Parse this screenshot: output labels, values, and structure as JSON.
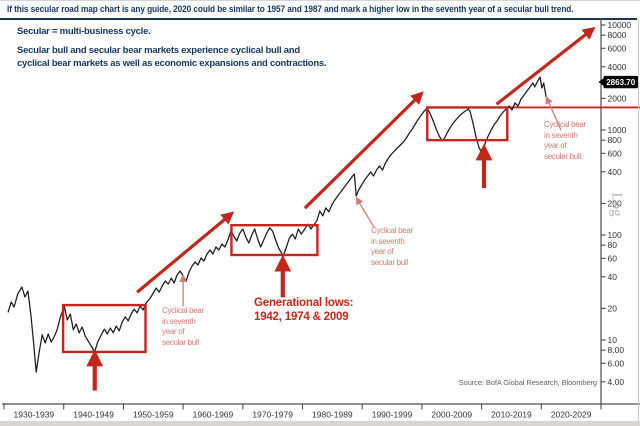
{
  "header": {
    "title": "If this secular road map chart is any guide, 2020 could be similar to 1957 and 1987 and mark a higher low in the seventh year of a secular bull trend.",
    "subtitle1": "Secular = multi-business cycle.",
    "subtitle2_line1": "Secular bull and secular bear markets experience cyclical bull and",
    "subtitle2_line2": "cyclical bear markets as well as economic expansions and contractions."
  },
  "colors": {
    "navy": "#17365d",
    "red": "#c3271c",
    "light_red": "#cf7b72",
    "line": "#1c1c1c",
    "axis": "#4d4d4d",
    "tick_text": "#333333",
    "marker_bg": "#000000",
    "marker_text": "#ffffff"
  },
  "chart_data": {
    "type": "line",
    "scale": "log",
    "title": "If this secular road map chart is any guide, 2020 could be similar to 1957 and 1987 and mark a higher low in the seventh year of a secular bull trend.",
    "source": "Source: BofA Global Research, Bloomberg",
    "x_axis": {
      "start_year": 1930,
      "end_year": 2030,
      "labels": [
        "1930-1939",
        "1940-1949",
        "1950-1959",
        "1960-1969",
        "1970-1979",
        "1980-1989",
        "1990-1999",
        "2000-2009",
        "2010-2019",
        "2020-2029"
      ]
    },
    "y_axis": {
      "axis_label": "Log",
      "ticks": [
        {
          "value": 10000,
          "label": "10000"
        },
        {
          "value": 8000,
          "label": "8000"
        },
        {
          "value": 6000,
          "label": "6000"
        },
        {
          "value": 4000,
          "label": "4000"
        },
        {
          "value": 2000,
          "label": "2000"
        },
        {
          "value": 1000,
          "label": "1000"
        },
        {
          "value": 800,
          "label": "800"
        },
        {
          "value": 600,
          "label": "600"
        },
        {
          "value": 400,
          "label": "400"
        },
        {
          "value": 200,
          "label": "200"
        },
        {
          "value": 100,
          "label": "100"
        },
        {
          "value": 80,
          "label": "80"
        },
        {
          "value": 60,
          "label": "60"
        },
        {
          "value": 40,
          "label": "40"
        },
        {
          "value": 20,
          "label": "20"
        },
        {
          "value": 10,
          "label": "10"
        },
        {
          "value": 8,
          "label": "8.00"
        },
        {
          "value": 6,
          "label": "6.00"
        },
        {
          "value": 4,
          "label": "4.00"
        }
      ]
    },
    "price_marker": {
      "label": "2863.70",
      "value": 2863.7
    },
    "series": [
      {
        "name": "stock-index",
        "points": [
          [
            1930.7,
            18.5
          ],
          [
            1931.2,
            23
          ],
          [
            1931.7,
            20.6
          ],
          [
            1932.3,
            27.4
          ],
          [
            1933,
            32
          ],
          [
            1933.5,
            25.7
          ],
          [
            1934,
            29.3
          ],
          [
            1934.5,
            17.3
          ],
          [
            1935,
            8.96
          ],
          [
            1935.4,
            4.95
          ],
          [
            1935.9,
            7.69
          ],
          [
            1936.4,
            11.2
          ],
          [
            1936.9,
            9.36
          ],
          [
            1937.4,
            11.4
          ],
          [
            1937.9,
            9.57
          ],
          [
            1938.4,
            10.7
          ],
          [
            1938.9,
            12.5
          ],
          [
            1939.4,
            16.2
          ],
          [
            1940.1,
            21.1
          ],
          [
            1940.6,
            15.5
          ],
          [
            1941.1,
            17.7
          ],
          [
            1941.6,
            12.5
          ],
          [
            1942.1,
            14.2
          ],
          [
            1942.6,
            11.7
          ],
          [
            1943.1,
            13.3
          ],
          [
            1943.6,
            10.9
          ],
          [
            1944.1,
            9.77
          ],
          [
            1944.6,
            8.77
          ],
          [
            1945.2,
            7.69
          ],
          [
            1945.7,
            9.57
          ],
          [
            1946.3,
            11.2
          ],
          [
            1946.8,
            12.7
          ],
          [
            1947.3,
            11.4
          ],
          [
            1947.8,
            13
          ],
          [
            1948.3,
            11.7
          ],
          [
            1948.8,
            13.6
          ],
          [
            1949.3,
            12.2
          ],
          [
            1949.8,
            14.8
          ],
          [
            1950.3,
            16.6
          ],
          [
            1950.8,
            15.2
          ],
          [
            1951.3,
            17.7
          ],
          [
            1951.8,
            19.7
          ],
          [
            1952.3,
            18.1
          ],
          [
            1952.8,
            21.1
          ],
          [
            1953.3,
            19.3
          ],
          [
            1953.8,
            22.5
          ],
          [
            1954.5,
            25.1
          ],
          [
            1955,
            28
          ],
          [
            1955.5,
            31.3
          ],
          [
            1956,
            28.6
          ],
          [
            1956.5,
            32.7
          ],
          [
            1957,
            36.5
          ],
          [
            1957.5,
            34.1
          ],
          [
            1958,
            38.9
          ],
          [
            1958.5,
            34.9
          ],
          [
            1959,
            41.6
          ],
          [
            1959.5,
            45.4
          ],
          [
            1960,
            40.7
          ],
          [
            1960.5,
            36.5
          ],
          [
            1961,
            44.5
          ],
          [
            1961.5,
            50.7
          ],
          [
            1962,
            55.3
          ],
          [
            1962.5,
            51.8
          ],
          [
            1963,
            60.4
          ],
          [
            1963.5,
            56.5
          ],
          [
            1964,
            65.9
          ],
          [
            1964.5,
            71.9
          ],
          [
            1965,
            65.9
          ],
          [
            1965.5,
            76.9
          ],
          [
            1966,
            71.9
          ],
          [
            1966.5,
            82
          ],
          [
            1967,
            76.9
          ],
          [
            1967.5,
            89.6
          ],
          [
            1968,
            109
          ],
          [
            1968.5,
            97.7
          ],
          [
            1969,
            87.7
          ],
          [
            1969.5,
            104
          ],
          [
            1970,
            114
          ],
          [
            1970.5,
            95.7
          ],
          [
            1971,
            83.9
          ],
          [
            1971.5,
            100
          ],
          [
            1972,
            114
          ],
          [
            1972.5,
            91.6
          ],
          [
            1973,
            76.9
          ],
          [
            1973.5,
            89.6
          ],
          [
            1974,
            104
          ],
          [
            1974.5,
            117
          ],
          [
            1975,
            109
          ],
          [
            1975.5,
            89.6
          ],
          [
            1976,
            75.2
          ],
          [
            1976.5,
            67.4
          ],
          [
            1976.8,
            63.1
          ],
          [
            1977.3,
            76.9
          ],
          [
            1977.8,
            93.5
          ],
          [
            1978.3,
            102
          ],
          [
            1978.8,
            91.6
          ],
          [
            1979.3,
            114
          ],
          [
            1979.8,
            102
          ],
          [
            1980.3,
            112
          ],
          [
            1980.9,
            127
          ],
          [
            1981.4,
            114
          ],
          [
            1981.9,
            125
          ],
          [
            1982.4,
            136
          ],
          [
            1982.9,
            169
          ],
          [
            1983.4,
            152
          ],
          [
            1983.9,
            181
          ],
          [
            1984.4,
            166
          ],
          [
            1984.9,
            193
          ],
          [
            1985.4,
            215
          ],
          [
            1985.9,
            235
          ],
          [
            1986.4,
            257
          ],
          [
            1986.9,
            280
          ],
          [
            1987.4,
            306
          ],
          [
            1987.9,
            334
          ],
          [
            1988.4,
            365
          ],
          [
            1988.7,
            381
          ],
          [
            1989,
            235
          ],
          [
            1989.4,
            268
          ],
          [
            1989.9,
            299
          ],
          [
            1990.4,
            334
          ],
          [
            1990.9,
            365
          ],
          [
            1991.4,
            398
          ],
          [
            1991.9,
            365
          ],
          [
            1992.4,
            416
          ],
          [
            1992.9,
            454
          ],
          [
            1993.4,
            416
          ],
          [
            1993.9,
            485
          ],
          [
            1994.4,
            541
          ],
          [
            1994.9,
            590
          ],
          [
            1995.4,
            631
          ],
          [
            1995.9,
            674
          ],
          [
            1996.4,
            719
          ],
          [
            1996.9,
            769
          ],
          [
            1997.4,
            839
          ],
          [
            1997.9,
            936
          ],
          [
            1998.4,
            1020
          ],
          [
            1998.9,
            1140
          ],
          [
            1999.4,
            1270
          ],
          [
            1999.9,
            1390
          ],
          [
            2000.4,
            1520
          ],
          [
            2000.9,
            1620
          ],
          [
            2001.4,
            1420
          ],
          [
            2001.9,
            1220
          ],
          [
            2002.4,
            1020
          ],
          [
            2002.9,
            877
          ],
          [
            2003.4,
            785
          ],
          [
            2003.8,
            839
          ],
          [
            2004.3,
            957
          ],
          [
            2004.8,
            1070
          ],
          [
            2005.3,
            1170
          ],
          [
            2005.8,
            1270
          ],
          [
            2006.3,
            1360
          ],
          [
            2006.8,
            1450
          ],
          [
            2007.3,
            1520
          ],
          [
            2007.8,
            1580
          ],
          [
            2008.1,
            1480
          ],
          [
            2008.6,
            1140
          ],
          [
            2009.1,
            839
          ],
          [
            2009.6,
            674
          ],
          [
            2010.1,
            604
          ],
          [
            2010.6,
            752
          ],
          [
            2011.1,
            877
          ],
          [
            2011.6,
            1000
          ],
          [
            2012.1,
            1120
          ],
          [
            2012.6,
            1220
          ],
          [
            2013.1,
            1360
          ],
          [
            2013.6,
            1480
          ],
          [
            2014.1,
            1580
          ],
          [
            2014.6,
            1690
          ],
          [
            2015.1,
            1550
          ],
          [
            2015.6,
            1810
          ],
          [
            2016.1,
            1690
          ],
          [
            2016.6,
            1970
          ],
          [
            2017.1,
            2150
          ],
          [
            2017.6,
            2350
          ],
          [
            2018.1,
            2570
          ],
          [
            2018.6,
            2800
          ],
          [
            2018.9,
            2570
          ],
          [
            2019.4,
            2930
          ],
          [
            2019.8,
            3200
          ],
          [
            2020.1,
            2510
          ],
          [
            2020.4,
            2800
          ],
          [
            2020.8,
            2060
          ]
        ]
      }
    ],
    "highlight_boxes": [
      {
        "from_year": 1939.9,
        "to_year": 1953.7,
        "top_price": 21.5,
        "bottom_price": 7.7
      },
      {
        "from_year": 1968.1,
        "to_year": 1982.5,
        "top_price": 124,
        "bottom_price": 64.5
      },
      {
        "from_year": 2000.9,
        "to_year": 2014.3,
        "top_price": 1640,
        "bottom_price": 800
      }
    ],
    "trend_arrows": [
      {
        "from": [
          1952.3,
          28.5
        ],
        "to": [
          1967.9,
          156
        ]
      },
      {
        "from": [
          1980.4,
          180
        ],
        "to": [
          1999.7,
          2160
        ]
      },
      {
        "from": [
          2012.5,
          1760
        ],
        "to": [
          2028.4,
          8950
        ]
      }
    ],
    "up_arrows": [
      {
        "year": 1945.2,
        "from_price": 3.3,
        "to_price": 7.0
      },
      {
        "year": 1976.7,
        "from_price": 25.5,
        "to_price": 56
      },
      {
        "year": 2010.4,
        "from_price": 280,
        "to_price": 640
      }
    ],
    "pointer_arrows": [
      {
        "from": [
          1960.0,
          21.0
        ],
        "to": [
          1960.0,
          39.5
        ]
      },
      {
        "from": [
          1992.0,
          118
        ],
        "to": [
          1989.2,
          218
        ]
      },
      {
        "from": [
          2023.3,
          1000
        ],
        "to": [
          2021.0,
          1980
        ]
      }
    ],
    "resistance_line": {
      "price": 1640,
      "from_year": 2014.3
    },
    "annotations": {
      "cyclical_bear_1": {
        "lines": [
          "Cyclical bear",
          "in seventh",
          "year of",
          "secular bull"
        ]
      },
      "cyclical_bear_2": {
        "lines": [
          "Cyclical bear",
          "in seventh",
          "year of",
          "secular bull"
        ]
      },
      "cyclical_bear_3": {
        "lines": [
          "Cyclical bear",
          "in seventh",
          "year of",
          "secular bull."
        ]
      },
      "generational_lows": {
        "lines": [
          "Generational lows:",
          "1942, 1974 & 2009"
        ]
      }
    }
  }
}
